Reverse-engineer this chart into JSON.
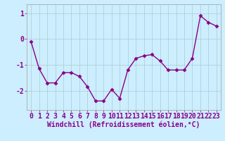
{
  "x": [
    0,
    1,
    2,
    3,
    4,
    5,
    6,
    7,
    8,
    9,
    10,
    11,
    12,
    13,
    14,
    15,
    16,
    17,
    18,
    19,
    20,
    21,
    22,
    23
  ],
  "y": [
    -0.1,
    -1.15,
    -1.7,
    -1.7,
    -1.3,
    -1.3,
    -1.45,
    -1.85,
    -2.4,
    -2.4,
    -1.95,
    -2.3,
    -1.2,
    -0.75,
    -0.65,
    -0.6,
    -0.85,
    -1.2,
    -1.2,
    -1.2,
    -0.75,
    0.9,
    0.65,
    0.5
  ],
  "line_color": "#880088",
  "marker_color": "#880088",
  "bg_color": "#cceeff",
  "grid_color": "#aacccc",
  "xlabel": "Windchill (Refroidissement éolien,°C)",
  "xlim": [
    -0.5,
    23.5
  ],
  "ylim": [
    -2.75,
    1.35
  ],
  "yticks": [
    -2,
    -1,
    0,
    1
  ],
  "xticks": [
    0,
    1,
    2,
    3,
    4,
    5,
    6,
    7,
    8,
    9,
    10,
    11,
    12,
    13,
    14,
    15,
    16,
    17,
    18,
    19,
    20,
    21,
    22,
    23
  ],
  "xlabel_fontsize": 7,
  "tick_fontsize": 7,
  "linewidth": 1.0,
  "markersize": 2.5
}
